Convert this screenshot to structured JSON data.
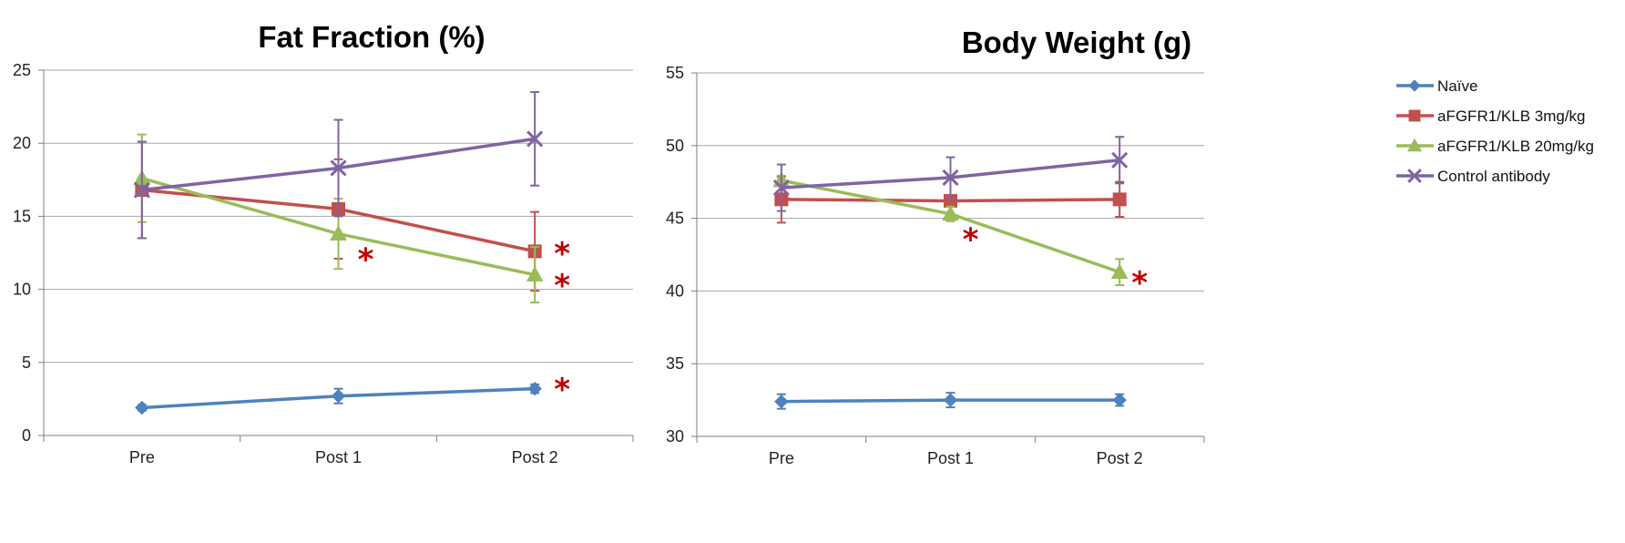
{
  "chart_data": [
    {
      "type": "line",
      "title": "Fat Fraction (%)",
      "xlabel": "",
      "ylabel": "",
      "categories": [
        "Pre",
        "Post 1",
        "Post 2"
      ],
      "ylim": [
        0,
        25
      ],
      "yticks": [
        "0",
        "5",
        "10",
        "15",
        "20",
        "25"
      ],
      "grid": true,
      "series": [
        {
          "name": "Naïve",
          "values": [
            1.9,
            2.7,
            3.2
          ],
          "err": [
            0.2,
            0.5,
            0.3
          ]
        },
        {
          "name": "aFGFR1/KLB 3mg/kg",
          "values": [
            16.8,
            15.5,
            12.6
          ],
          "err": [
            3.3,
            3.4,
            2.7
          ]
        },
        {
          "name": "aFGFR1/KLB 20mg/kg",
          "values": [
            17.6,
            13.8,
            11.0
          ],
          "err": [
            3.0,
            2.4,
            1.9
          ]
        },
        {
          "name": "Control antibody",
          "values": [
            16.8,
            18.3,
            20.3
          ],
          "err": [
            3.3,
            3.3,
            3.2
          ]
        }
      ],
      "annotations": [
        {
          "text": "*",
          "series": "aFGFR1/KLB 20mg/kg",
          "category": "Post 1",
          "y": 12.2
        },
        {
          "text": "*",
          "series": "aFGFR1/KLB 3mg/kg",
          "category": "Post 2",
          "y": 12.6
        },
        {
          "text": "*",
          "series": "aFGFR1/KLB 20mg/kg",
          "category": "Post 2",
          "y": 10.4
        },
        {
          "text": "*",
          "series": "Naïve",
          "category": "Post 2",
          "y": 3.3
        }
      ]
    },
    {
      "type": "line",
      "title": "Body Weight (g)",
      "xlabel": "",
      "ylabel": "",
      "categories": [
        "Pre",
        "Post 1",
        "Post 2"
      ],
      "ylim": [
        30,
        55
      ],
      "yticks": [
        "30",
        "35",
        "40",
        "45",
        "50",
        "55"
      ],
      "grid": true,
      "series": [
        {
          "name": "Naïve",
          "values": [
            32.4,
            32.5,
            32.5
          ],
          "err": [
            0.5,
            0.5,
            0.4
          ]
        },
        {
          "name": "aFGFR1/KLB 3mg/kg",
          "values": [
            46.3,
            46.2,
            46.3
          ],
          "err": [
            1.6,
            0.0,
            1.2
          ]
        },
        {
          "name": "aFGFR1/KLB 20mg/kg",
          "values": [
            47.6,
            45.3,
            41.3
          ],
          "err": [
            0.2,
            0.5,
            0.9
          ]
        },
        {
          "name": "Control antibody",
          "values": [
            47.1,
            47.8,
            49.0
          ],
          "err": [
            1.6,
            1.4,
            1.6
          ]
        }
      ],
      "annotations": [
        {
          "text": "*",
          "series": "aFGFR1/KLB 20mg/kg",
          "category": "Post 1",
          "y": 43.7
        },
        {
          "text": "*",
          "series": "aFGFR1/KLB 20mg/kg",
          "category": "Post 2",
          "y": 40.7
        }
      ]
    }
  ],
  "legend": {
    "placement": "right",
    "items": [
      {
        "label": "Naïve",
        "color": "#4F81BD",
        "marker": "diamond"
      },
      {
        "label": "aFGFR1/KLB 3mg/kg",
        "color": "#C0504D",
        "marker": "square"
      },
      {
        "label": "aFGFR1/KLB 20mg/kg",
        "color": "#9BBB59",
        "marker": "triangle"
      },
      {
        "label": "Control antibody",
        "color": "#8064A2",
        "marker": "x"
      }
    ]
  },
  "colors": {
    "significance": "#C00000",
    "grid": "#A6A6A6",
    "axis": "#7F7F7F"
  }
}
